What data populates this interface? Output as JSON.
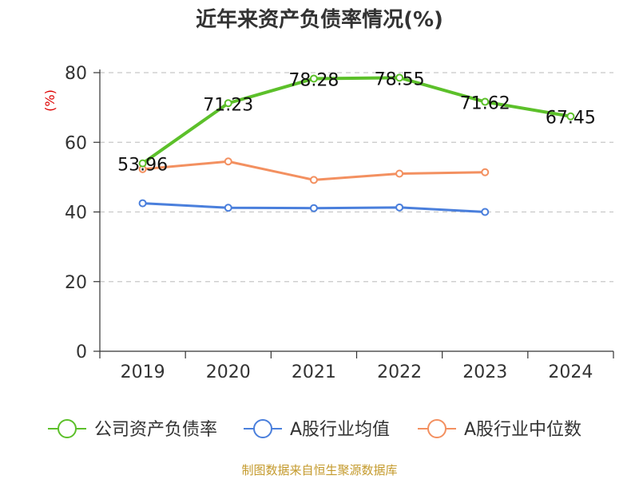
{
  "chart_data": {
    "type": "line",
    "title": "近年来资产负债率情况(%)",
    "ylabel": "(%)",
    "x": [
      "2019",
      "2020",
      "2021",
      "2022",
      "2023",
      "2024"
    ],
    "yticks": [
      "0",
      "20",
      "40",
      "60",
      "80"
    ],
    "ylim": [
      0,
      80
    ],
    "grid": true,
    "legend_position": "bottom",
    "series": [
      {
        "name": "公司资产负债率",
        "color": "#5cc02a",
        "values": [
          53.96,
          71.23,
          78.28,
          78.55,
          71.62,
          67.45
        ],
        "labels": [
          "53.96",
          "71.23",
          "78.28",
          "78.55",
          "71.62",
          "67.45"
        ]
      },
      {
        "name": "A股行业均值",
        "color": "#4a7fdc",
        "values": [
          42.5,
          41.2,
          41.1,
          41.3,
          40.0,
          null
        ]
      },
      {
        "name": "A股行业中位数",
        "color": "#f39060",
        "values": [
          52.3,
          54.5,
          49.2,
          51.0,
          51.4,
          null
        ]
      }
    ]
  },
  "source": "制图数据来自恒生聚源数据库"
}
